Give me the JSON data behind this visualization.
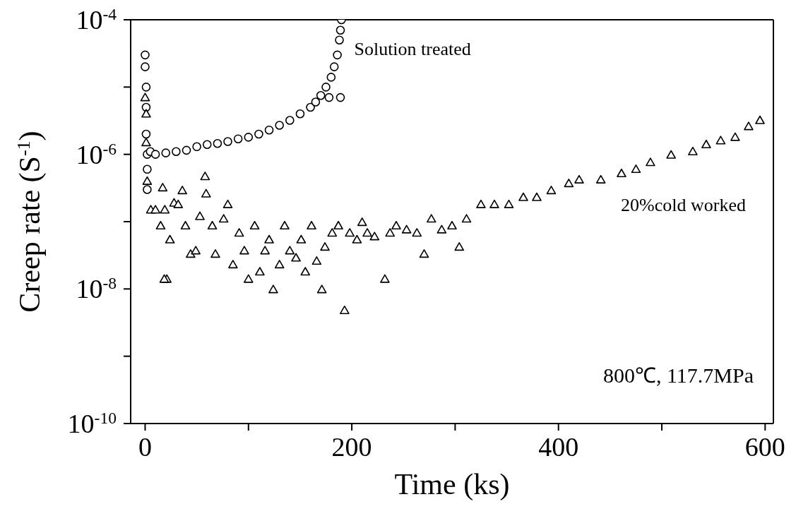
{
  "chart_data": {
    "type": "scatter",
    "xlabel": "Time (ks)",
    "ylabel": "Creep rate (S$^{-1}$)",
    "log": "y",
    "xlim": [
      -14,
      608
    ],
    "ylim": [
      1e-10,
      0.0001
    ],
    "xticks": [
      0,
      {
        "value": 100,
        "label": null
      },
      200,
      {
        "value": 300,
        "label": null
      },
      400,
      {
        "value": 500,
        "label": null
      },
      600
    ],
    "yticks": [
      {
        "value": 1e-10,
        "label": "10$^{-10}$"
      },
      {
        "value": 1e-09,
        "label": null
      },
      {
        "value": 1e-08,
        "label": "10$^{-8}$"
      },
      {
        "value": 1e-07,
        "label": null
      },
      {
        "value": 1e-06,
        "label": "10$^{-6}$"
      },
      {
        "value": 1e-05,
        "label": null
      },
      {
        "value": 0.0001,
        "label": "10$^{-4}$"
      }
    ],
    "annotations": [
      "800℃, 117.7MPa"
    ],
    "series": [
      {
        "name": "Solution treated",
        "color": "#000000",
        "marker": "circle",
        "x": [
          0,
          0,
          1,
          1,
          1,
          2,
          2,
          2,
          5,
          10,
          20,
          30,
          40,
          50,
          60,
          70,
          80,
          90,
          100,
          110,
          120,
          130,
          140,
          150,
          160,
          165,
          170,
          175,
          178,
          180,
          183,
          186,
          188,
          189,
          190,
          189
        ],
        "values": [
          3e-05,
          2e-05,
          1e-05,
          5e-06,
          2e-06,
          1e-06,
          6e-07,
          3e-07,
          1.1e-06,
          1e-06,
          1.05e-06,
          1.1e-06,
          1.15e-06,
          1.3e-06,
          1.4e-06,
          1.45e-06,
          1.55e-06,
          1.7e-06,
          1.8e-06,
          2e-06,
          2.3e-06,
          2.7e-06,
          3.2e-06,
          4e-06,
          5e-06,
          6e-06,
          7.5e-06,
          1e-05,
          7e-06,
          1.4e-05,
          2e-05,
          3e-05,
          5e-05,
          7e-05,
          0.0001,
          7e-06
        ]
      },
      {
        "name": "20%cold worked",
        "color": "#000000",
        "marker": "triangle",
        "x": [
          0,
          1,
          1,
          2,
          5.5,
          10,
          17,
          19,
          15,
          21,
          18.5,
          24,
          28,
          32,
          36,
          39,
          44,
          49,
          53,
          58,
          59,
          65,
          68,
          76,
          80,
          85,
          91,
          96,
          100,
          106,
          111,
          116,
          120,
          124,
          130,
          135,
          140,
          146,
          151,
          155,
          161,
          166,
          171,
          174,
          181,
          187,
          193,
          198,
          205,
          210,
          215,
          222,
          232,
          237,
          243,
          253,
          263,
          270,
          277,
          287,
          297,
          304,
          311,
          325,
          338,
          352,
          366,
          379,
          393,
          410,
          420,
          441,
          461,
          475,
          489,
          509,
          530,
          543,
          557,
          571,
          584,
          595
        ],
        "values": [
          7e-06,
          4e-06,
          1.5e-06,
          4e-07,
          1.5e-07,
          1.5e-07,
          3.2e-07,
          1.5e-07,
          8.7e-08,
          1.4e-08,
          1.4e-08,
          5.4e-08,
          1.9e-07,
          1.8e-07,
          2.9e-07,
          8.7e-08,
          3.3e-08,
          3.7e-08,
          1.2e-07,
          4.7e-07,
          2.6e-07,
          8.7e-08,
          3.3e-08,
          1.1e-07,
          1.8e-07,
          2.3e-08,
          6.8e-08,
          3.7e-08,
          1.4e-08,
          8.7e-08,
          1.8e-08,
          3.7e-08,
          5.4e-08,
          9.8e-09,
          2.3e-08,
          8.7e-08,
          3.7e-08,
          2.9e-08,
          5.4e-08,
          1.8e-08,
          8.7e-08,
          2.6e-08,
          9.8e-09,
          4.2e-08,
          6.8e-08,
          8.7e-08,
          4.8e-09,
          6.8e-08,
          5.4e-08,
          9.8e-08,
          6.8e-08,
          6e-08,
          1.4e-08,
          6.8e-08,
          8.7e-08,
          7.6e-08,
          6.8e-08,
          3.3e-08,
          1.1e-07,
          7.6e-08,
          8.7e-08,
          4.2e-08,
          1.1e-07,
          1.8e-07,
          1.8e-07,
          1.8e-07,
          2.3e-07,
          2.3e-07,
          2.9e-07,
          3.7e-07,
          4.2e-07,
          4.2e-07,
          5.2e-07,
          6e-07,
          7.6e-07,
          9.8e-07,
          1.1e-06,
          1.4e-06,
          1.6e-06,
          1.8e-06,
          2.6e-06,
          3.2e-06
        ]
      }
    ]
  }
}
